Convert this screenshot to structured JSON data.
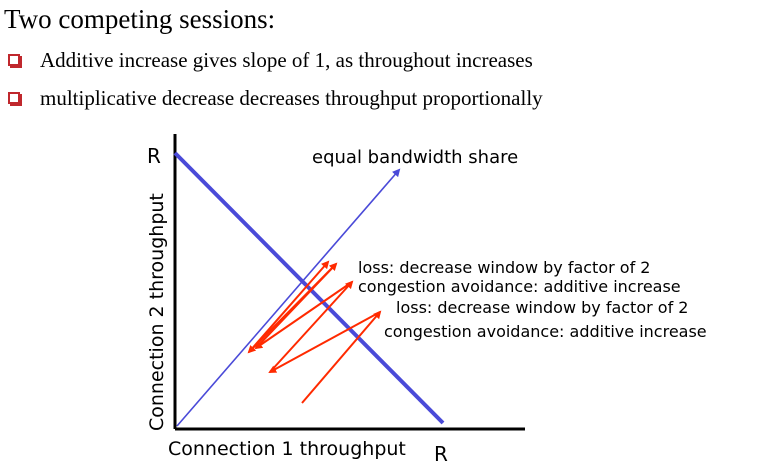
{
  "heading": "Two competing sessions:",
  "bullets": [
    "Additive increase gives slope of 1, as throughout increases",
    "multiplicative decrease decreases throughput proportionally"
  ],
  "diagram": {
    "x_axis_label": "Connection 1 throughput",
    "y_axis_label": "Connection 2 throughput",
    "x_axis_end_label": "R",
    "y_axis_end_label": "R",
    "diagonal_label": "equal bandwidth share",
    "annotations": [
      "loss: decrease window by factor of 2",
      "congestion avoidance: additive increase",
      "loss: decrease window by factor of 2",
      "congestion avoidance: additive increase"
    ],
    "colors": {
      "axis": "#000000",
      "fair_share_line": "#4a4ad8",
      "trajectory": "#ff2a00"
    }
  }
}
